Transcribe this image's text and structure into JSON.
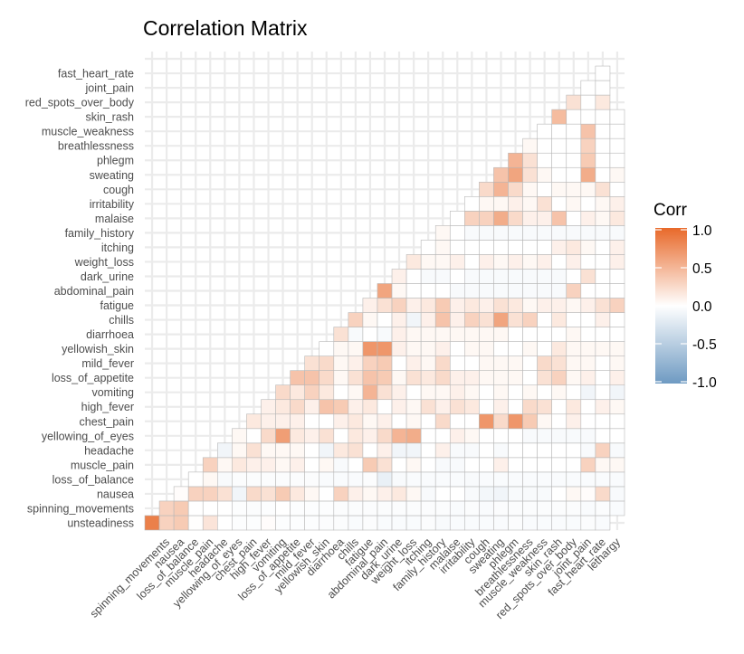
{
  "chart_data": {
    "type": "heatmap",
    "title": "Correlation Matrix",
    "variables": [
      "unsteadiness",
      "spinning_movements",
      "nausea",
      "loss_of_balance",
      "muscle_pain",
      "headache",
      "yellowing_of_eyes",
      "chest_pain",
      "high_fever",
      "vomiting",
      "loss_of_appetite",
      "mild_fever",
      "yellowish_skin",
      "diarrhoea",
      "chills",
      "fatigue",
      "abdominal_pain",
      "dark_urine",
      "weight_loss",
      "itching",
      "family_history",
      "malaise",
      "irritability",
      "cough",
      "sweating",
      "phlegm",
      "breathlessness",
      "muscle_weakness",
      "skin_rash",
      "red_spots_over_body",
      "joint_pain",
      "fast_heart_rate",
      "lethargy"
    ],
    "x_tick_labels": [
      "spinning_movements",
      "nausea",
      "loss_of_balance",
      "muscle_pain",
      "headache",
      "yellowing_of_eyes",
      "chest_pain",
      "high_fever",
      "vomiting",
      "loss_of_appetite",
      "mild_fever",
      "yellowish_skin",
      "diarrhoea",
      "chills",
      "fatigue",
      "abdominal_pain",
      "dark_urine",
      "weight_loss",
      "itching",
      "family_history",
      "malaise",
      "irritability",
      "cough",
      "sweating",
      "phlegm",
      "breathlessness",
      "muscle_weakness",
      "skin_rash",
      "red_spots_over_body",
      "joint_pain",
      "fast_heart_rate",
      "lethargy"
    ],
    "y_tick_labels": [
      "unsteadiness",
      "spinning_movements",
      "nausea",
      "loss_of_balance",
      "muscle_pain",
      "headache",
      "yellowing_of_eyes",
      "chest_pain",
      "high_fever",
      "vomiting",
      "loss_of_appetite",
      "mild_fever",
      "yellowish_skin",
      "diarrhoea",
      "chills",
      "fatigue",
      "abdominal_pain",
      "dark_urine",
      "weight_loss",
      "itching",
      "family_history",
      "malaise",
      "irritability",
      "cough",
      "sweating",
      "phlegm",
      "breathlessness",
      "muscle_weakness",
      "skin_rash",
      "red_spots_over_body",
      "joint_pain",
      "fast_heart_rate"
    ],
    "correlations": [
      [
        0.85,
        0.3,
        0.35,
        0.01,
        0.18,
        0.0,
        -0.02,
        -0.02,
        0.02,
        -0.02,
        -0.02,
        -0.02,
        -0.03,
        -0.03,
        -0.04,
        -0.03,
        -0.04,
        -0.04,
        -0.04,
        -0.03,
        -0.05,
        -0.04,
        -0.04,
        -0.04,
        -0.04,
        -0.03,
        -0.04,
        -0.04,
        -0.04,
        -0.04,
        -0.03,
        -0.04
      ],
      [
        0.3,
        0.35,
        0.0,
        0.0,
        0.0,
        -0.02,
        -0.03,
        -0.02,
        0.0,
        -0.02,
        -0.02,
        -0.02,
        -0.03,
        -0.03,
        -0.03,
        -0.03,
        -0.03,
        -0.03,
        -0.03,
        -0.03,
        -0.04,
        -0.03,
        -0.04,
        -0.03,
        -0.03,
        -0.03,
        -0.03,
        -0.03,
        -0.03,
        -0.04,
        -0.03,
        -0.04
      ],
      [
        0.02,
        0.3,
        0.3,
        0.2,
        -0.1,
        0.25,
        0.2,
        0.35,
        0.15,
        0.05,
        0.0,
        0.3,
        0.1,
        0.05,
        0.1,
        0.15,
        0.05,
        -0.05,
        0.0,
        0.0,
        -0.05,
        -0.08,
        -0.1,
        -0.05,
        -0.05,
        -0.05,
        0.0,
        0.05,
        0.02,
        0.25,
        -0.05,
        -0.05
      ],
      [
        0.0,
        0.05,
        -0.05,
        -0.03,
        -0.03,
        -0.03,
        -0.03,
        -0.03,
        -0.03,
        -0.04,
        -0.04,
        -0.04,
        -0.03,
        -0.15,
        -0.05,
        -0.04,
        -0.04,
        -0.04,
        -0.04,
        -0.05,
        -0.04,
        -0.04,
        -0.04,
        -0.04,
        -0.04,
        -0.04,
        -0.04,
        -0.04,
        -0.04,
        -0.04,
        -0.04,
        0.0
      ],
      [
        0.3,
        0.05,
        0.15,
        0.1,
        0.1,
        0.05,
        0.1,
        0.0,
        0.05,
        -0.05,
        0.0,
        0.35,
        0.2,
        0.0,
        0.05,
        0.0,
        -0.05,
        -0.05,
        0.0,
        0.0,
        0.1,
        0.0,
        0.0,
        0.0,
        0.0,
        0.0,
        0.3,
        0.05,
        0.05,
        0.0,
        0.0,
        0.05
      ],
      [
        -0.1,
        0.05,
        0.2,
        0.05,
        0.05,
        0.05,
        0.0,
        -0.1,
        0.15,
        0.2,
        0.0,
        0.1,
        -0.1,
        -0.1,
        0.0,
        0.1,
        -0.05,
        -0.05,
        0.0,
        -0.05,
        0.0,
        0.0,
        0.0,
        0.0,
        0.0,
        -0.05,
        0.3,
        -0.05,
        0.0,
        0.0,
        0.0,
        0.0
      ],
      [
        0.05,
        0.0,
        0.25,
        0.65,
        0.15,
        0.1,
        0.2,
        0.0,
        0.15,
        0.1,
        0.25,
        0.5,
        0.55,
        0.0,
        0.0,
        0.1,
        0.05,
        0.0,
        0.0,
        0.0,
        -0.05,
        -0.05,
        -0.05,
        -0.05,
        -0.05,
        0.0,
        0.0,
        0.05,
        0.0,
        0.0
      ],
      [
        0.15,
        0.1,
        0.1,
        0.1,
        0.0,
        0.0,
        0.1,
        0.15,
        0.05,
        0.1,
        0.0,
        0.05,
        0.0,
        0.25,
        0.0,
        0.0,
        0.7,
        0.25,
        0.7,
        0.35,
        0.05,
        0.0,
        0.1,
        0.0,
        0.0,
        0.0,
        -0.05,
        -0.05
      ],
      [
        0.1,
        0.15,
        0.25,
        0.1,
        0.4,
        0.35,
        0.1,
        0.15,
        0.0,
        0.1,
        0.05,
        0.2,
        0.1,
        0.2,
        0.15,
        0.0,
        0.1,
        0.0,
        0.25,
        0.2,
        0.0,
        0.15,
        0.0,
        0.1,
        0.05,
        0.0
      ],
      [
        0.25,
        0.15,
        0.3,
        0.15,
        0.0,
        0.05,
        0.5,
        0.2,
        0.1,
        0.0,
        0.05,
        0.05,
        0.1,
        0.05,
        0.0,
        0.05,
        0.0,
        0.05,
        0.0,
        0.05,
        0.0,
        -0.1,
        0.0,
        -0.1
      ],
      [
        0.4,
        0.4,
        0.25,
        0.05,
        0.2,
        0.4,
        0.35,
        0.05,
        0.2,
        0.15,
        0.25,
        0.1,
        0.1,
        0.05,
        0.05,
        0.05,
        0.0,
        0.2,
        0.3,
        0.05,
        0.1,
        0.0,
        0.1
      ],
      [
        0.2,
        0.25,
        0.05,
        0.1,
        0.3,
        0.35,
        0.0,
        0.1,
        0.05,
        0.25,
        0.0,
        0.0,
        0.05,
        0.05,
        0.05,
        0.0,
        0.25,
        0.2,
        0.05,
        0.05,
        0.0,
        0.05
      ],
      [
        0.0,
        0.05,
        0.05,
        0.7,
        0.7,
        0.1,
        0.05,
        0.05,
        0.1,
        0.0,
        0.05,
        0.05,
        0.0,
        0.0,
        0.05,
        0.0,
        0.15,
        0.05,
        0.05,
        0.05,
        0.05
      ],
      [
        0.2,
        -0.05,
        0.0,
        -0.05,
        0.1,
        0.05,
        0.05,
        0.05,
        0.05,
        0.05,
        0.05,
        0.05,
        0.0,
        0.0,
        0.0,
        0.0,
        0.05,
        0.0,
        0.0,
        0.0
      ],
      [
        0.3,
        0.05,
        0.0,
        0.1,
        -0.1,
        0.1,
        0.4,
        0.1,
        0.3,
        0.2,
        0.6,
        0.2,
        0.3,
        0.0,
        0.15,
        0.0,
        0.0,
        0.1,
        0.0
      ],
      [
        0.1,
        0.2,
        0.3,
        0.1,
        0.15,
        0.35,
        0.1,
        0.15,
        0.1,
        0.2,
        0.15,
        0.05,
        0.1,
        0.1,
        0.05,
        0.1,
        0.2,
        0.3
      ],
      [
        0.6,
        0.05,
        0.0,
        0.0,
        0.0,
        -0.05,
        -0.05,
        -0.05,
        -0.05,
        -0.05,
        -0.05,
        -0.05,
        -0.05,
        0.3,
        0.0,
        0.0,
        0.0
      ],
      [
        0.1,
        0.0,
        -0.05,
        -0.05,
        0.0,
        -0.05,
        -0.05,
        -0.05,
        -0.05,
        -0.05,
        -0.05,
        -0.05,
        0.0,
        0.2,
        0.0,
        0.0
      ],
      [
        0.15,
        0.05,
        0.05,
        0.1,
        0.0,
        0.1,
        0.05,
        0.1,
        0.05,
        0.1,
        0.0,
        0.1,
        0.0,
        0.0,
        0.1
      ],
      [
        0.0,
        0.05,
        0.0,
        0.0,
        0.0,
        0.0,
        0.0,
        0.0,
        0.0,
        0.1,
        0.15,
        0.05,
        0.0,
        0.1
      ],
      [
        0.05,
        0.0,
        -0.05,
        -0.05,
        -0.05,
        -0.05,
        -0.05,
        -0.05,
        -0.05,
        -0.05,
        -0.05,
        -0.05,
        -0.05
      ],
      [
        0.0,
        0.3,
        0.3,
        0.55,
        0.25,
        0.1,
        0.1,
        0.4,
        0.0,
        0.1,
        0.05,
        0.15
      ],
      [
        0.0,
        0.05,
        0.05,
        0.1,
        0.05,
        0.2,
        0.0,
        0.05,
        0.0,
        0.05,
        0.1
      ],
      [
        0.25,
        0.5,
        0.25,
        0.05,
        0.0,
        0.05,
        0.05,
        0.05,
        0.2,
        0.0
      ],
      [
        0.4,
        0.6,
        0.2,
        0.05,
        0.0,
        0.0,
        0.55,
        0.0,
        0.05
      ],
      [
        0.5,
        0.2,
        0.0,
        0.0,
        0.0,
        0.35,
        0.0,
        0.0
      ],
      [
        0.05,
        0.0,
        0.0,
        0.0,
        0.3,
        0.0,
        0.0
      ],
      [
        0.0,
        0.0,
        0.0,
        0.4,
        0.0,
        0.0
      ],
      [
        0.45,
        0.0,
        0.0,
        0.0,
        0.0
      ],
      [
        0.2,
        0.0,
        0.15
      ],
      [
        0.0,
        0.0
      ],
      [
        0.0
      ]
    ],
    "legend": {
      "title": "Corr",
      "ticks": [
        "1.0",
        "0.5",
        "0.0",
        "-0.5",
        "-1.0"
      ],
      "low": "#6e9ac2",
      "mid": "#ffffff",
      "high": "#e8692a",
      "position": "right"
    },
    "grid": true,
    "xlabel": "",
    "ylabel": ""
  }
}
